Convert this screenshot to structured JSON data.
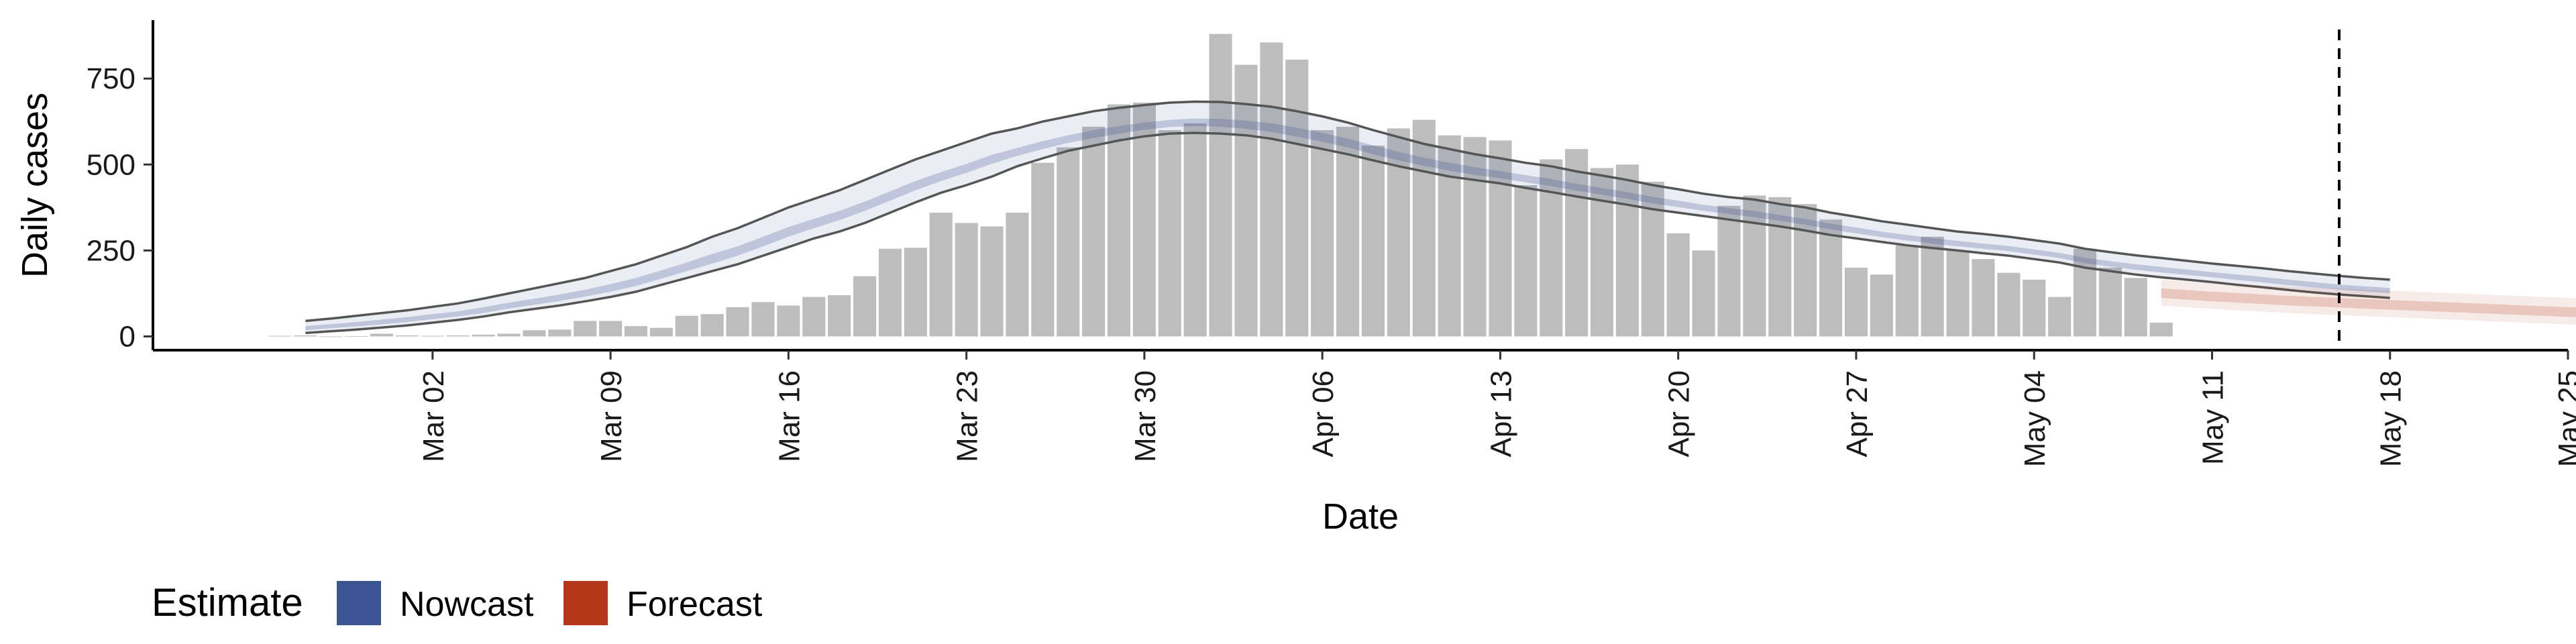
{
  "chart_data": {
    "type": "bar",
    "xlabel": "Date",
    "ylabel": "Daily cases",
    "ylim": [
      -40,
      920
    ],
    "y_ticks": [
      0,
      250,
      500,
      750
    ],
    "y_tick_labels": [
      "0",
      "250",
      "500",
      "750"
    ],
    "x_ticks": [
      "2020-03-02",
      "2020-03-09",
      "2020-03-16",
      "2020-03-23",
      "2020-03-30",
      "2020-04-06",
      "2020-04-13",
      "2020-04-20",
      "2020-04-27",
      "2020-05-04",
      "2020-05-11",
      "2020-05-18",
      "2020-05-25"
    ],
    "x_tick_labels": [
      "Mar 02",
      "Mar 09",
      "Mar 16",
      "Mar 23",
      "Mar 30",
      "Apr 06",
      "Apr 13",
      "Apr 20",
      "Apr 27",
      "May 04",
      "May 11",
      "May 18",
      "May 25"
    ],
    "xlim": [
      "2020-02-20",
      "2020-05-25"
    ],
    "vline_date": "2020-05-16",
    "grid": false,
    "legend_position": "bottom-left",
    "colors": {
      "bars": "#bdbdbd",
      "nowcast": "#3c5394",
      "forecast": "#b5371a",
      "outline": "#555555",
      "vline": "#000000"
    },
    "legend": {
      "title": "Estimate",
      "items": [
        {
          "label": "Nowcast",
          "color": "#3c5394"
        },
        {
          "label": "Forecast",
          "color": "#b5371a"
        }
      ]
    },
    "bars": {
      "start_date": "2020-02-25",
      "values": [
        2,
        3,
        0,
        1,
        8,
        3,
        2,
        3,
        5,
        8,
        18,
        20,
        45,
        45,
        30,
        25,
        60,
        65,
        85,
        100,
        90,
        115,
        120,
        175,
        255,
        258,
        360,
        330,
        320,
        360,
        505,
        550,
        610,
        675,
        680,
        600,
        620,
        880,
        790,
        855,
        805,
        600,
        610,
        555,
        605,
        630,
        585,
        580,
        570,
        440,
        515,
        545,
        490,
        500,
        450,
        300,
        250,
        380,
        410,
        405,
        385,
        340,
        200,
        180,
        265,
        290,
        250,
        225,
        185,
        165,
        115,
        255,
        200,
        170,
        40
      ]
    },
    "nowcast": {
      "start_date": "2020-02-26",
      "outer_upper": [
        45,
        52,
        60,
        68,
        76,
        86,
        96,
        110,
        125,
        140,
        155,
        170,
        190,
        210,
        235,
        260,
        290,
        315,
        345,
        375,
        400,
        425,
        455,
        485,
        515,
        540,
        565,
        590,
        605,
        625,
        640,
        655,
        665,
        673,
        680,
        683,
        682,
        676,
        668,
        655,
        640,
        622,
        600,
        580,
        560,
        545,
        530,
        518,
        505,
        495,
        480,
        468,
        455,
        440,
        428,
        415,
        405,
        398,
        385,
        375,
        360,
        348,
        335,
        325,
        315,
        305,
        298,
        290,
        280,
        270,
        255,
        245,
        236,
        228,
        220,
        212,
        205,
        198,
        190,
        183,
        176,
        170,
        165
      ],
      "outer_lower": [
        10,
        15,
        20,
        26,
        32,
        40,
        48,
        58,
        70,
        80,
        90,
        102,
        115,
        130,
        150,
        170,
        190,
        210,
        235,
        260,
        285,
        305,
        330,
        360,
        390,
        418,
        440,
        465,
        495,
        518,
        540,
        555,
        570,
        582,
        590,
        592,
        590,
        585,
        575,
        560,
        545,
        530,
        512,
        495,
        480,
        465,
        455,
        445,
        432,
        420,
        407,
        395,
        383,
        370,
        360,
        350,
        340,
        330,
        320,
        308,
        295,
        285,
        275,
        265,
        257,
        250,
        242,
        235,
        225,
        215,
        200,
        190,
        180,
        172,
        165,
        158,
        150,
        143,
        135,
        128,
        122,
        117,
        112
      ],
      "inner_upper": [
        30,
        36,
        42,
        49,
        56,
        65,
        73,
        85,
        98,
        110,
        122,
        136,
        152,
        170,
        192,
        215,
        240,
        262,
        290,
        318,
        342,
        365,
        392,
        422,
        452,
        478,
        502,
        528,
        548,
        568,
        585,
        600,
        612,
        622,
        630,
        634,
        633,
        628,
        620,
        607,
        592,
        575,
        556,
        537,
        520,
        505,
        492,
        481,
        469,
        458,
        444,
        432,
        420,
        406,
        395,
        383,
        373,
        365,
        353,
        342,
        328,
        317,
        305,
        295,
        286,
        278,
        270,
        263,
        253,
        243,
        229,
        219,
        210,
        202,
        195,
        187,
        180,
        173,
        165,
        158,
        151,
        146,
        141
      ],
      "inner_lower": [
        18,
        24,
        29,
        35,
        42,
        50,
        58,
        68,
        81,
        92,
        103,
        116,
        130,
        147,
        168,
        190,
        212,
        235,
        262,
        290,
        315,
        338,
        365,
        395,
        425,
        452,
        476,
        502,
        525,
        545,
        563,
        577,
        590,
        601,
        609,
        612,
        610,
        604,
        595,
        581,
        566,
        550,
        530,
        512,
        496,
        482,
        470,
        460,
        448,
        437,
        424,
        412,
        400,
        387,
        376,
        365,
        356,
        347,
        336,
        325,
        311,
        300,
        289,
        279,
        270,
        262,
        255,
        248,
        238,
        228,
        213,
        203,
        194,
        186,
        179,
        172,
        164,
        157,
        149,
        142,
        136,
        131,
        126
      ]
    },
    "forecast": {
      "start_date": "2020-05-09",
      "outer_upper": [
        165,
        160,
        155,
        152,
        148,
        145,
        142,
        139,
        136,
        133,
        130,
        127,
        124,
        121,
        118,
        115,
        112,
        109,
        106,
        103,
        100
      ],
      "outer_lower": [
        90,
        85,
        80,
        76,
        72,
        68,
        65,
        62,
        59,
        56,
        53,
        50,
        47,
        44,
        41,
        38,
        35,
        33,
        31,
        29,
        27
      ],
      "inner_upper": [
        140,
        135,
        130,
        126,
        122,
        118,
        115,
        112,
        109,
        106,
        103,
        100,
        97,
        94,
        91,
        88,
        85,
        82,
        79,
        76,
        74
      ],
      "inner_lower": [
        112,
        107,
        102,
        98,
        94,
        90,
        87,
        84,
        81,
        78,
        75,
        72,
        69,
        66,
        63,
        60,
        57,
        54,
        52,
        50,
        48
      ]
    }
  }
}
